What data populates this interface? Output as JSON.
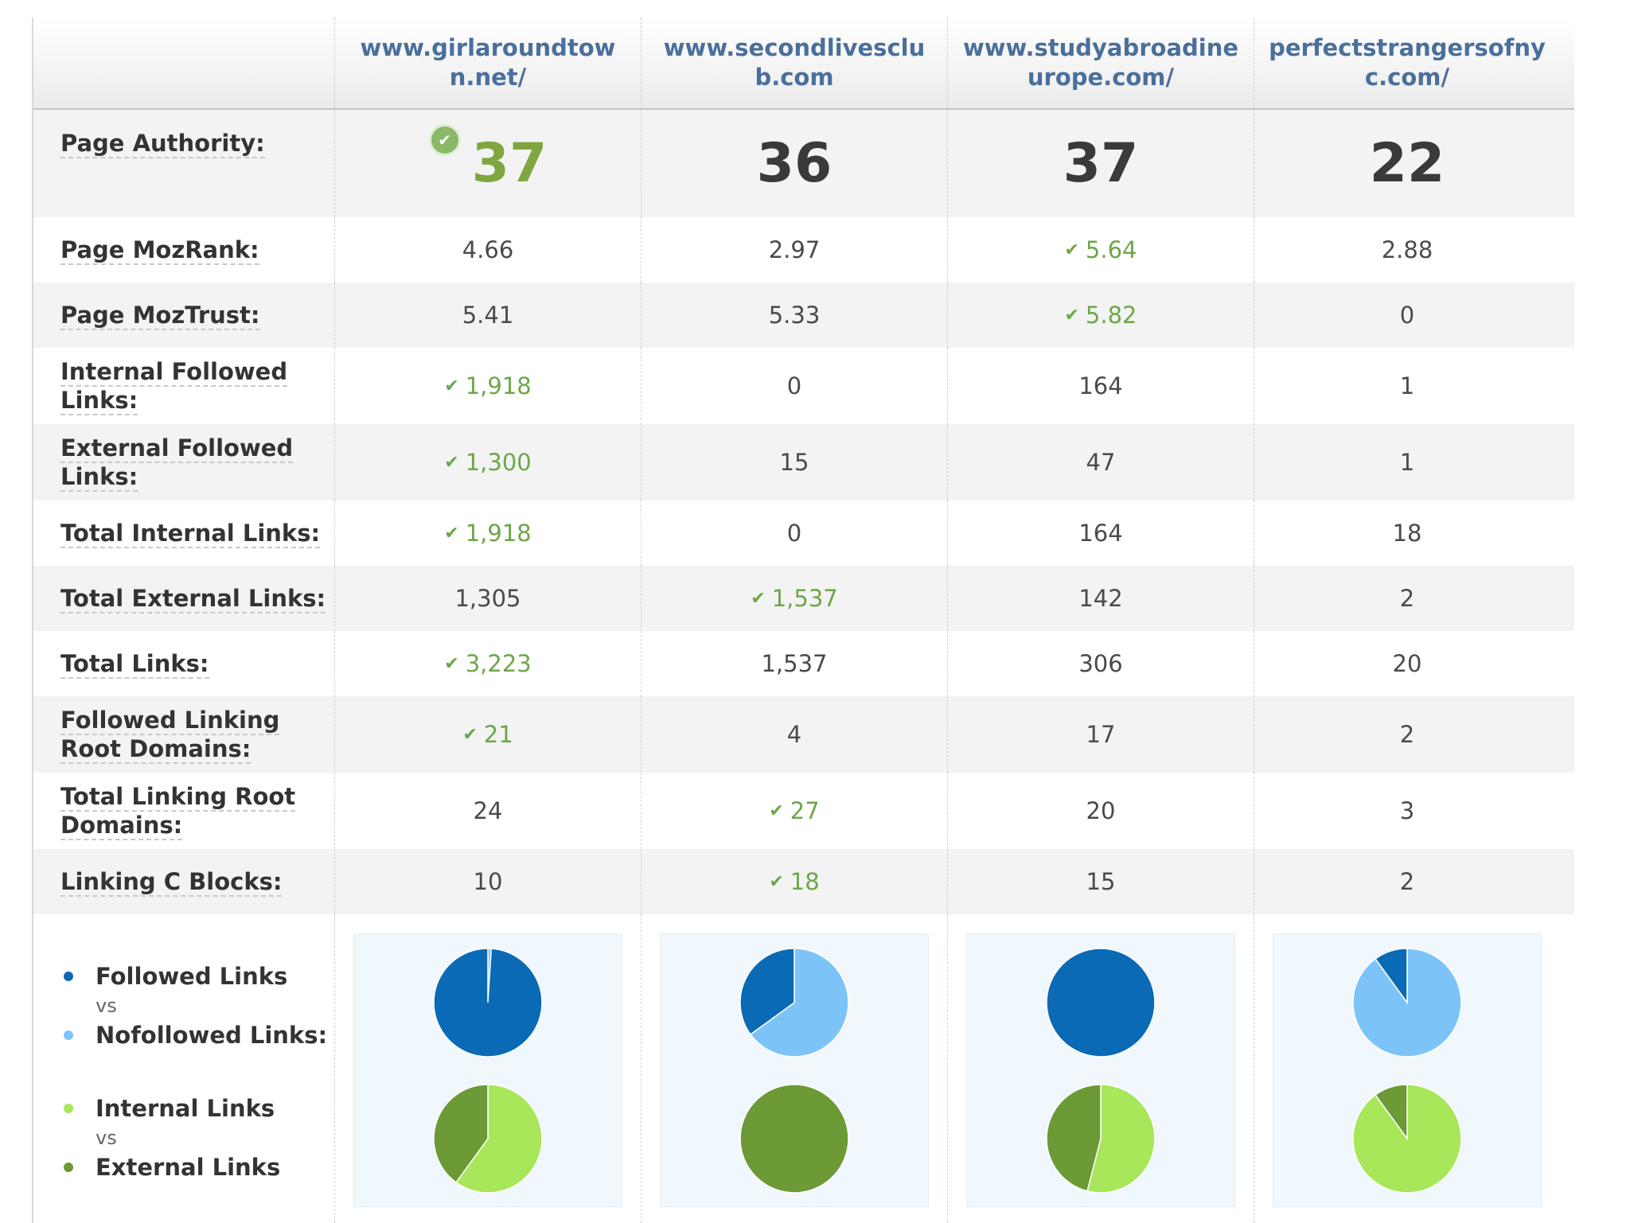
{
  "colors": {
    "followed": "#0a6ab5",
    "nofollowed": "#7cc4f8",
    "internal": "#a8e65a",
    "external": "#6b9a36",
    "winner": "#6ea64a"
  },
  "sites": [
    "www.girlaroundtown.net/",
    "www.secondlivesclub.com",
    "www.studyabroadineurope.com/",
    "perfectstrangersofnyc.com/"
  ],
  "page_authority": {
    "label": "Page Authority:",
    "values": [
      "37",
      "36",
      "37",
      "22"
    ],
    "winner_index": 0
  },
  "metrics": [
    {
      "label": "Page MozRank:",
      "values": [
        "4.66",
        "2.97",
        "5.64",
        "2.88"
      ],
      "winner": [
        false,
        false,
        true,
        false
      ]
    },
    {
      "label": "Page MozTrust:",
      "values": [
        "5.41",
        "5.33",
        "5.82",
        "0"
      ],
      "winner": [
        false,
        false,
        true,
        false
      ]
    },
    {
      "label": "Internal Followed Links:",
      "values": [
        "1,918",
        "0",
        "164",
        "1"
      ],
      "winner": [
        true,
        false,
        false,
        false
      ]
    },
    {
      "label": "External Followed Links:",
      "values": [
        "1,300",
        "15",
        "47",
        "1"
      ],
      "winner": [
        true,
        false,
        false,
        false
      ]
    },
    {
      "label": "Total Internal Links:",
      "values": [
        "1,918",
        "0",
        "164",
        "18"
      ],
      "winner": [
        true,
        false,
        false,
        false
      ]
    },
    {
      "label": "Total External Links:",
      "values": [
        "1,305",
        "1,537",
        "142",
        "2"
      ],
      "winner": [
        false,
        true,
        false,
        false
      ]
    },
    {
      "label": "Total Links:",
      "values": [
        "3,223",
        "1,537",
        "306",
        "20"
      ],
      "winner": [
        true,
        false,
        false,
        false
      ]
    },
    {
      "label": "Followed Linking Root Domains:",
      "values": [
        "21",
        "4",
        "17",
        "2"
      ],
      "winner": [
        true,
        false,
        false,
        false
      ]
    },
    {
      "label": "Total Linking Root Domains:",
      "values": [
        "24",
        "27",
        "20",
        "3"
      ],
      "winner": [
        false,
        true,
        false,
        false
      ]
    },
    {
      "label": "Linking C Blocks:",
      "values": [
        "10",
        "18",
        "15",
        "2"
      ],
      "winner": [
        false,
        true,
        false,
        false
      ]
    }
  ],
  "legend": {
    "followed": "Followed Links",
    "vs1": "vs",
    "nofollowed": "Nofollowed Links:",
    "internal": "Internal Links",
    "vs2": "vs",
    "external": "External Links"
  },
  "chart_data": [
    {
      "type": "pie",
      "title": "Followed Links vs Nofollowed Links",
      "categories": [
        "www.girlaroundtown.net/",
        "www.secondlivesclub.com",
        "www.studyabroadineurope.com/",
        "perfectstrangersofnyc.com/"
      ],
      "series": [
        {
          "name": "Followed Links",
          "values": [
            0.99,
            0.35,
            1.0,
            0.1
          ]
        },
        {
          "name": "Nofollowed Links",
          "values": [
            0.01,
            0.65,
            0.0,
            0.9
          ]
        }
      ]
    },
    {
      "type": "pie",
      "title": "Internal Links vs External Links",
      "categories": [
        "www.girlaroundtown.net/",
        "www.secondlivesclub.com",
        "www.studyabroadineurope.com/",
        "perfectstrangersofnyc.com/"
      ],
      "series": [
        {
          "name": "Internal Links",
          "values": [
            0.6,
            0.0,
            0.54,
            0.9
          ]
        },
        {
          "name": "External Links",
          "values": [
            0.4,
            1.0,
            0.46,
            0.1
          ]
        }
      ]
    }
  ]
}
